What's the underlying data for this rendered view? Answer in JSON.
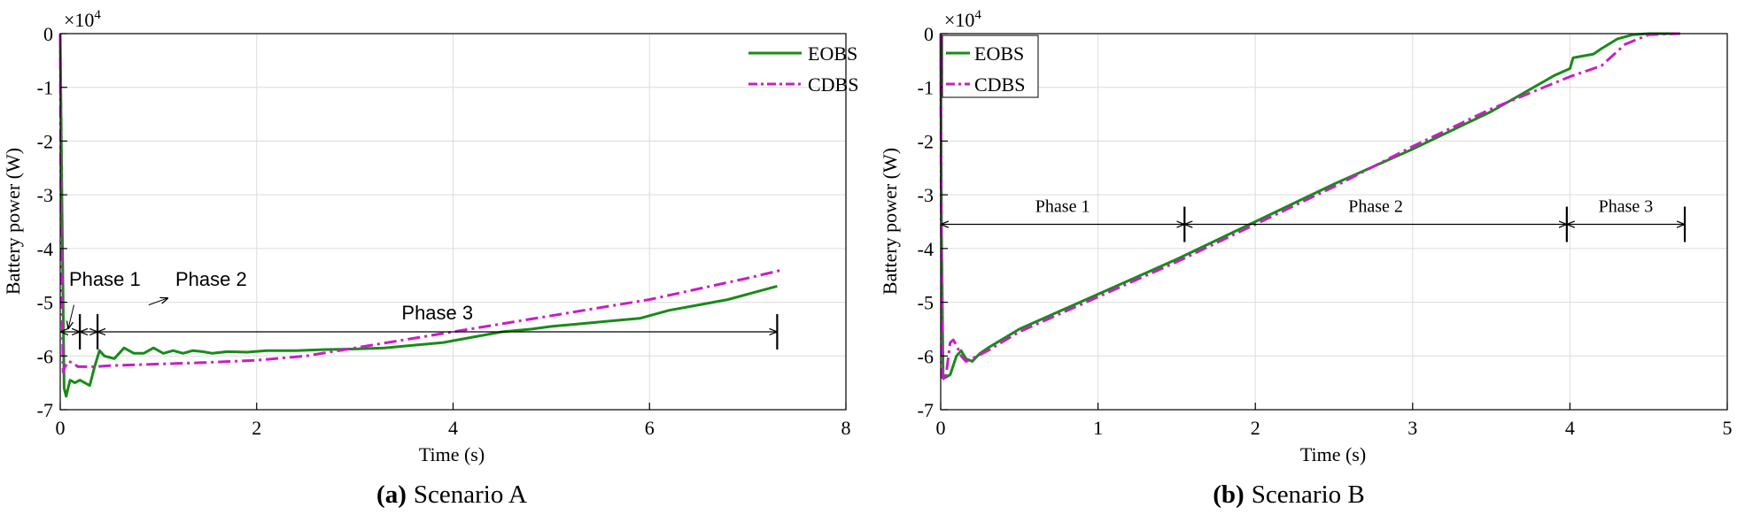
{
  "chart_data": [
    {
      "type": "line",
      "caption_bold": "(a)",
      "caption": "Scenario A",
      "xlabel": "Time (s)",
      "ylabel": "Battery power (W)",
      "exponent_label": "×10",
      "exponent_power": "4",
      "xlim": [
        0,
        8
      ],
      "ylim": [
        -7,
        0
      ],
      "xticks": [
        "0",
        "2",
        "4",
        "6",
        "8"
      ],
      "yticks": [
        "0",
        "-1",
        "-2",
        "-3",
        "-4",
        "-5",
        "-6",
        "-7"
      ],
      "grid": true,
      "legend_position": "top-right",
      "series": [
        {
          "name": "EOBS",
          "color": "#1a8a1a",
          "style": "solid",
          "x": [
            0,
            0.02,
            0.04,
            0.06,
            0.08,
            0.1,
            0.15,
            0.2,
            0.3,
            0.35,
            0.4,
            0.45,
            0.55,
            0.65,
            0.75,
            0.85,
            0.95,
            1.05,
            1.15,
            1.25,
            1.35,
            1.45,
            1.55,
            1.7,
            1.9,
            2.1,
            2.4,
            2.7,
            3.0,
            3.3,
            3.6,
            3.9,
            4.2,
            4.5,
            4.8,
            5.0,
            5.3,
            5.6,
            5.9,
            6.2,
            6.5,
            6.8,
            7.1,
            7.3
          ],
          "y": [
            0,
            -3.5,
            -6.6,
            -6.75,
            -6.6,
            -6.45,
            -6.5,
            -6.45,
            -6.55,
            -6.2,
            -5.9,
            -6.0,
            -6.05,
            -5.85,
            -5.95,
            -5.95,
            -5.85,
            -5.95,
            -5.9,
            -5.95,
            -5.9,
            -5.92,
            -5.95,
            -5.92,
            -5.93,
            -5.9,
            -5.9,
            -5.88,
            -5.87,
            -5.85,
            -5.8,
            -5.75,
            -5.65,
            -5.55,
            -5.5,
            -5.45,
            -5.4,
            -5.35,
            -5.3,
            -5.15,
            -5.05,
            -4.95,
            -4.8,
            -4.7
          ]
        },
        {
          "name": "CDBS",
          "color": "#c81ec8",
          "style": "dashdot",
          "x": [
            0,
            0.01,
            0.03,
            0.05,
            0.08,
            0.12,
            0.18,
            0.25,
            0.35,
            0.5,
            1.0,
            1.5,
            2.0,
            2.5,
            3.0,
            3.5,
            4.0,
            4.5,
            5.0,
            5.5,
            6.0,
            6.5,
            7.0,
            7.35
          ],
          "y": [
            0,
            -4.0,
            -6.3,
            -6.2,
            -6.1,
            -6.12,
            -6.2,
            -6.2,
            -6.2,
            -6.18,
            -6.15,
            -6.12,
            -6.08,
            -6.0,
            -5.85,
            -5.7,
            -5.55,
            -5.4,
            -5.25,
            -5.1,
            -4.95,
            -4.75,
            -4.55,
            -4.4
          ]
        }
      ],
      "phases": [
        {
          "label": "Phase 1",
          "x_start": 0,
          "x_end": 0.2
        },
        {
          "label": "Phase 2",
          "x_start": 0.2,
          "x_end": 0.38
        },
        {
          "label": "Phase 3",
          "x_start": 0.38,
          "x_end": 7.3
        }
      ],
      "phase_arrow_y": -5.55
    },
    {
      "type": "line",
      "caption_bold": "(b)",
      "caption": "Scenario B",
      "xlabel": "Time (s)",
      "ylabel": "Battery power (W)",
      "exponent_label": "×10",
      "exponent_power": "4",
      "xlim": [
        0,
        5
      ],
      "ylim": [
        -7,
        0
      ],
      "xticks": [
        "0",
        "1",
        "2",
        "3",
        "4",
        "5"
      ],
      "yticks": [
        "0",
        "-1",
        "-2",
        "-3",
        "-4",
        "-5",
        "-6",
        "-7"
      ],
      "grid": true,
      "legend_position": "top-left",
      "series": [
        {
          "name": "EOBS",
          "color": "#1a8a1a",
          "style": "solid",
          "x": [
            0,
            0.005,
            0.015,
            0.03,
            0.06,
            0.1,
            0.13,
            0.16,
            0.2,
            0.25,
            0.3,
            0.5,
            1.0,
            1.5,
            2.0,
            2.5,
            3.0,
            3.5,
            3.9,
            4.0,
            4.02,
            4.15,
            4.2,
            4.3,
            4.4,
            4.5,
            4.7
          ],
          "y": [
            0,
            -3.5,
            -6.35,
            -6.4,
            -6.35,
            -6.0,
            -5.9,
            -6.05,
            -6.1,
            -5.95,
            -5.85,
            -5.5,
            -4.85,
            -4.2,
            -3.5,
            -2.8,
            -2.15,
            -1.45,
            -0.78,
            -0.65,
            -0.45,
            -0.38,
            -0.28,
            -0.1,
            -0.02,
            0,
            0
          ]
        },
        {
          "name": "CDBS",
          "color": "#c81ec8",
          "style": "dashdot",
          "x": [
            0,
            0.003,
            0.01,
            0.03,
            0.06,
            0.08,
            0.1,
            0.13,
            0.16,
            0.2,
            0.3,
            0.5,
            1.0,
            1.5,
            2.0,
            2.5,
            3.0,
            3.5,
            4.0,
            4.2,
            4.35,
            4.5,
            4.7
          ],
          "y": [
            0,
            -3.0,
            -6.4,
            -6.45,
            -5.75,
            -5.7,
            -5.8,
            -6.0,
            -6.1,
            -6.05,
            -5.9,
            -5.55,
            -4.9,
            -4.25,
            -3.55,
            -2.85,
            -2.1,
            -1.4,
            -0.8,
            -0.6,
            -0.2,
            -0.02,
            0
          ]
        }
      ],
      "phases": [
        {
          "label": "Phase 1",
          "x_start": 0,
          "x_end": 1.55
        },
        {
          "label": "Phase 2",
          "x_start": 1.55,
          "x_end": 3.98
        },
        {
          "label": "Phase 3",
          "x_start": 3.98,
          "x_end": 4.73
        }
      ],
      "phase_arrow_y": -3.55
    }
  ]
}
